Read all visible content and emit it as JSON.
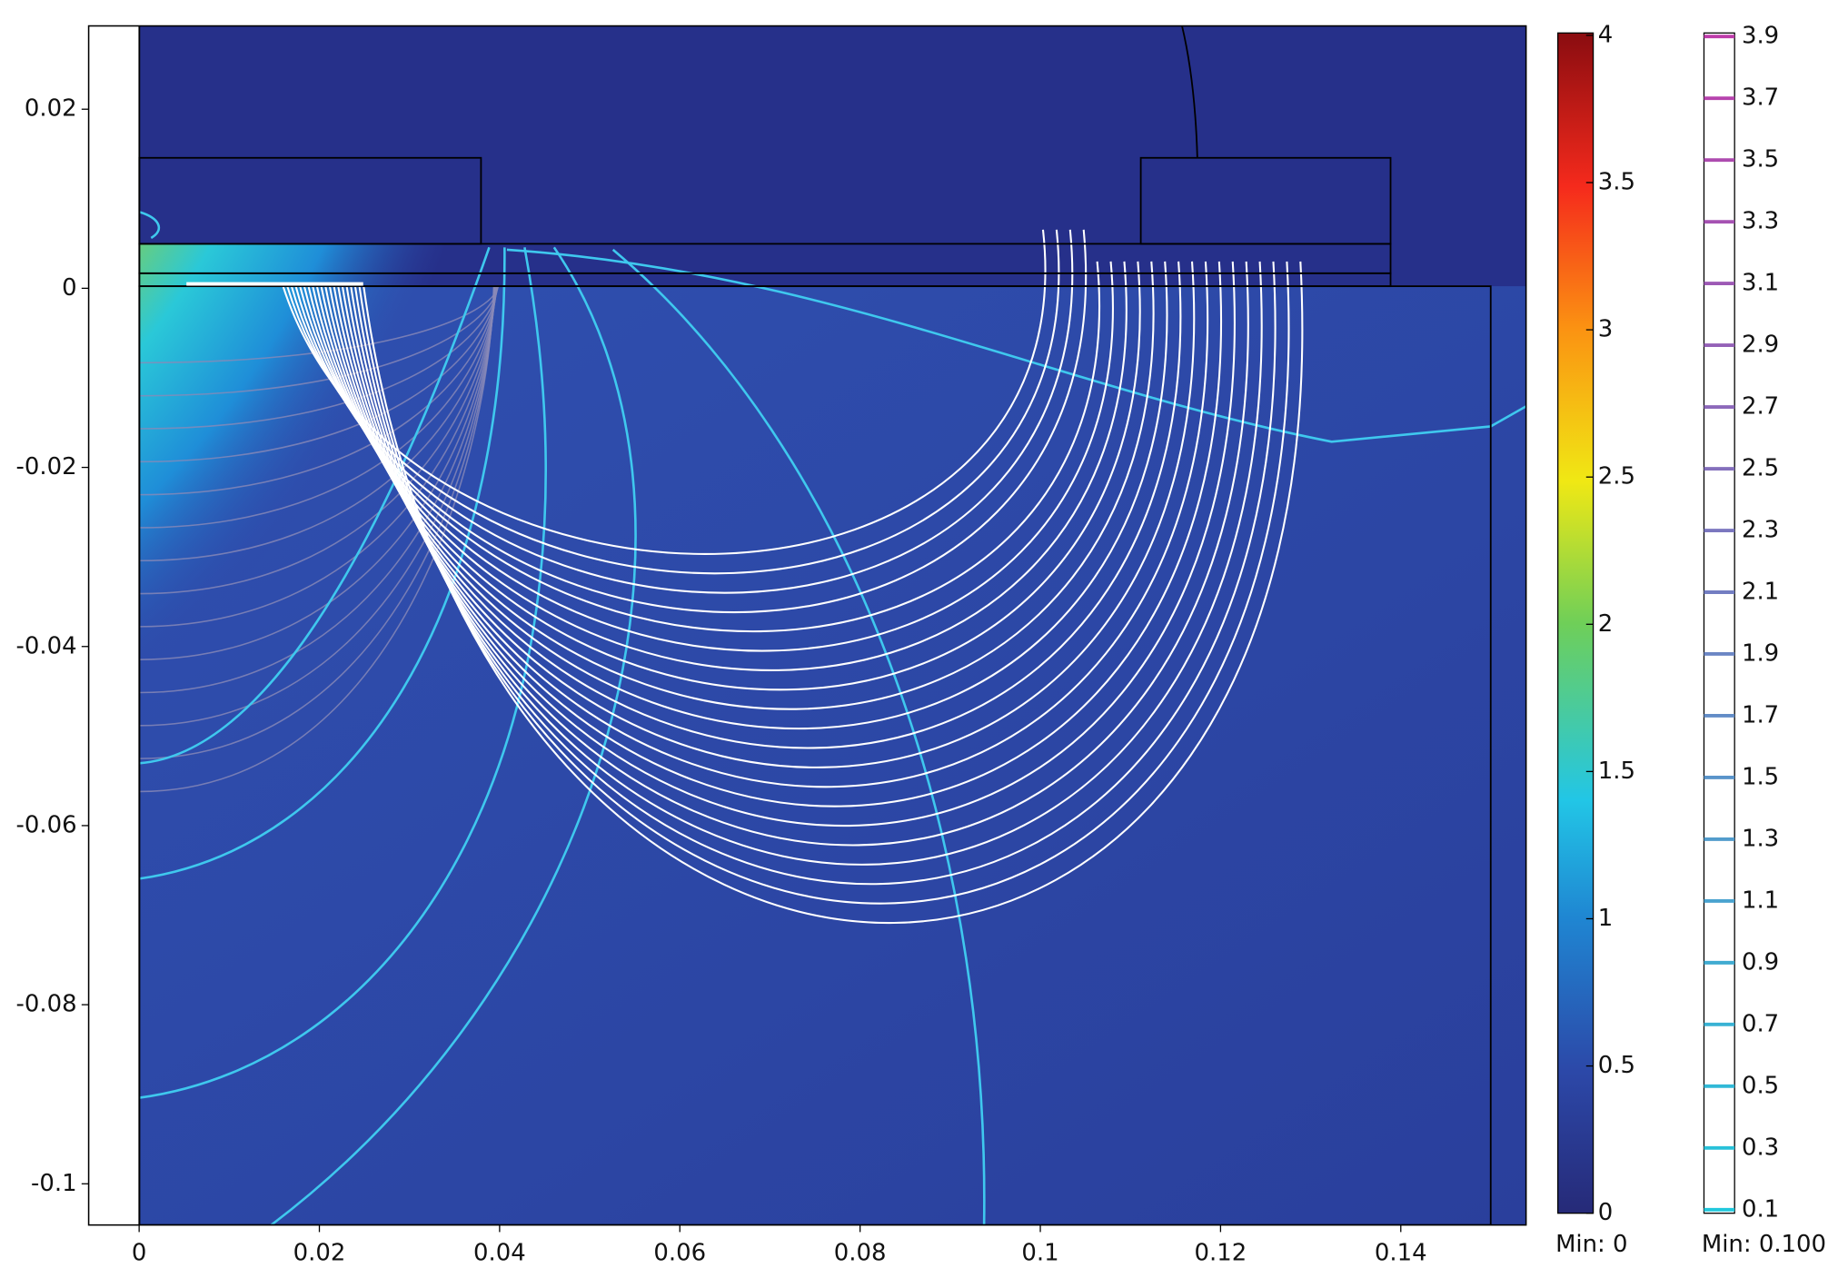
{
  "chart_data": {
    "type": "contour",
    "xlim": [
      -0.0056,
      0.1539
    ],
    "ylim": [
      -0.1046,
      0.0293
    ],
    "xticks": [
      0,
      0.02,
      0.04,
      0.06,
      0.08,
      0.1,
      0.12,
      0.14
    ],
    "yticks": [
      0.02,
      0,
      -0.02,
      -0.04,
      -0.06,
      -0.08,
      -0.1
    ],
    "colorbar": {
      "lim": [
        0,
        4
      ],
      "ticks": [
        0,
        0.5,
        1,
        1.5,
        2,
        2.5,
        3,
        3.5,
        4
      ],
      "min_label": "Min: 0"
    },
    "contour_legend": {
      "lim": [
        0.1,
        3.9
      ],
      "ticks": [
        0.1,
        0.3,
        0.5,
        0.7,
        0.9,
        1.1,
        1.3,
        1.5,
        1.7,
        1.9,
        2.1,
        2.3,
        2.5,
        2.7,
        2.9,
        3.1,
        3.3,
        3.5,
        3.7,
        3.9
      ],
      "min_label": "Min: 0.100"
    }
  }
}
